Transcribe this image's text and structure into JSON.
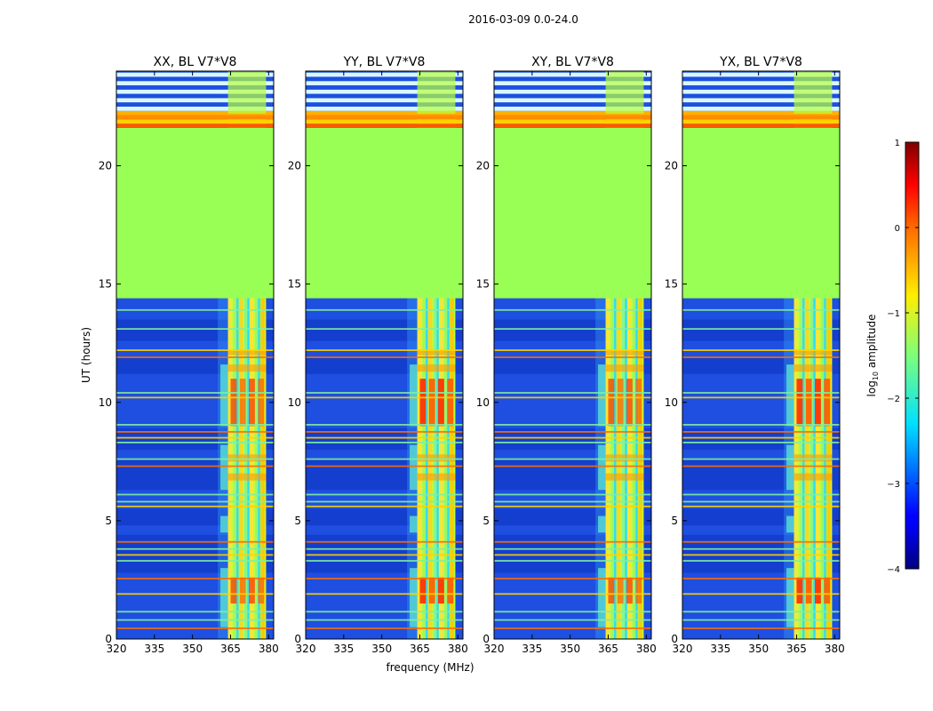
{
  "suptitle": "2016-03-09 0.0-24.0",
  "chart_data": [
    {
      "type": "heatmap",
      "title": "XX, BL V7*V8",
      "xlabel": "",
      "ylabel": "UT (hours)",
      "xlim": [
        320,
        382
      ],
      "ylim": [
        0,
        24
      ],
      "xticks": [
        "320",
        "335",
        "350",
        "365",
        "380"
      ],
      "yticks": [
        "0",
        "5",
        "10",
        "15",
        "20"
      ]
    },
    {
      "type": "heatmap",
      "title": "YY, BL V7*V8",
      "xlabel": "frequency (MHz)",
      "ylabel": "",
      "xlim": [
        320,
        382
      ],
      "ylim": [
        0,
        24
      ],
      "xticks": [
        "320",
        "335",
        "350",
        "365",
        "380"
      ],
      "yticks": [
        "0",
        "5",
        "10",
        "15",
        "20"
      ]
    },
    {
      "type": "heatmap",
      "title": "XY, BL V7*V8",
      "xlabel": "",
      "ylabel": "",
      "xlim": [
        320,
        382
      ],
      "ylim": [
        0,
        24
      ],
      "xticks": [
        "320",
        "335",
        "350",
        "365",
        "380"
      ],
      "yticks": [
        "0",
        "5",
        "10",
        "15",
        "20"
      ]
    },
    {
      "type": "heatmap",
      "title": "YX, BL V7*V8",
      "xlabel": "",
      "ylabel": "",
      "xlim": [
        320,
        382
      ],
      "ylim": [
        0,
        24
      ],
      "xticks": [
        "320",
        "335",
        "350",
        "365",
        "380"
      ],
      "yticks": [
        "0",
        "5",
        "10",
        "15",
        "20"
      ]
    }
  ],
  "colorbar": {
    "label": "log10 amplitude",
    "label_base": "log",
    "label_sub": "10",
    "label_rest": " amplitude",
    "range": [
      -4,
      1
    ],
    "ticks": [
      "1",
      "0",
      "−1",
      "−2",
      "−3",
      "−4"
    ],
    "colormap": "jet"
  },
  "features": {
    "flagged_gap_hours": [
      14.4,
      21.6
    ],
    "rfi_band_mhz": [
      364,
      379
    ],
    "bright_rfi_hours": [
      [
        1.5,
        2.6
      ],
      [
        9.0,
        11.0
      ]
    ],
    "fill_color": "#99ff55",
    "background_color": "#1e4fe0"
  }
}
